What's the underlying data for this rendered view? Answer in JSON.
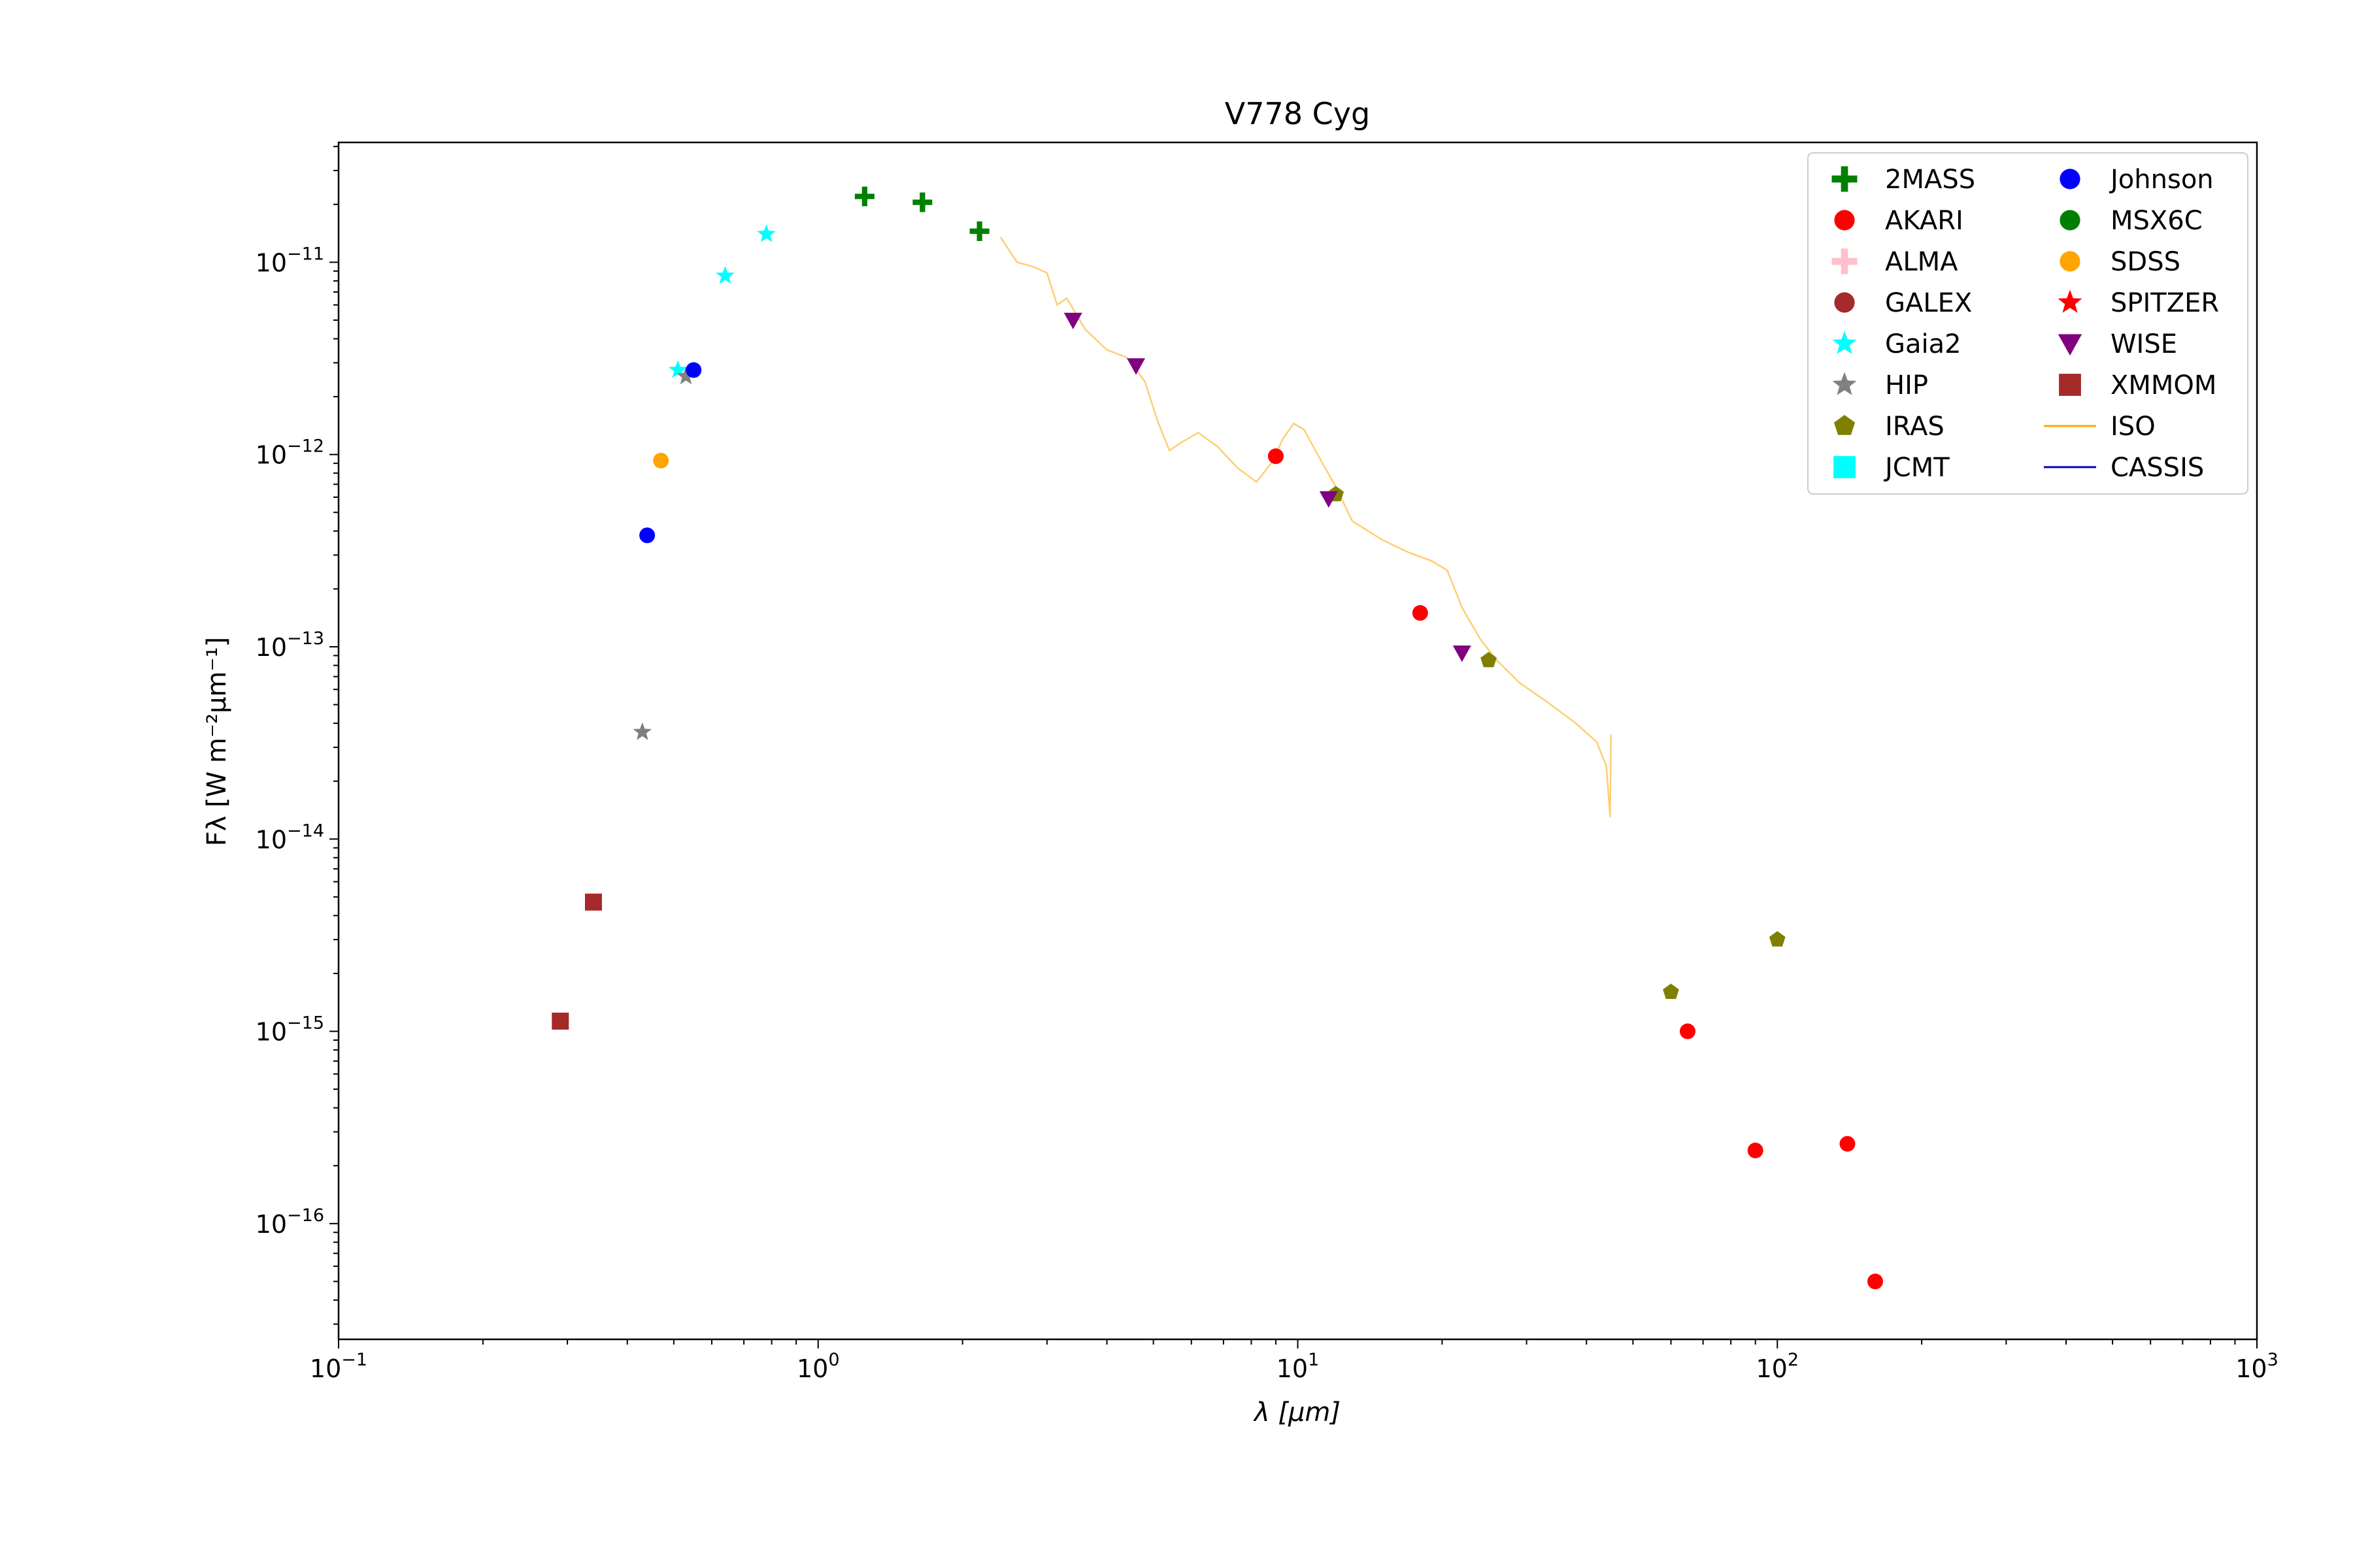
{
  "chart_data": {
    "type": "scatter",
    "title": "V778 Cyg",
    "xlabel": "λ [μm]",
    "ylabel": "Fλ [W m⁻²μm⁻¹]",
    "x_scale": "log",
    "y_scale": "log",
    "xlim": [
      0.1,
      1000
    ],
    "ylim": [
      2.5e-17,
      4.2e-11
    ],
    "grid": false,
    "legend_position": "top-right",
    "x_ticks": [
      {
        "value": 0.1,
        "base": "10",
        "exp": "−1"
      },
      {
        "value": 1,
        "base": "10",
        "exp": "0"
      },
      {
        "value": 10,
        "base": "10",
        "exp": "1"
      },
      {
        "value": 100,
        "base": "10",
        "exp": "2"
      },
      {
        "value": 1000,
        "base": "10",
        "exp": "3"
      }
    ],
    "y_ticks": [
      {
        "value": 1e-16,
        "base": "10",
        "exp": "−16"
      },
      {
        "value": 1e-15,
        "base": "10",
        "exp": "−15"
      },
      {
        "value": 1e-14,
        "base": "10",
        "exp": "−14"
      },
      {
        "value": 1e-13,
        "base": "10",
        "exp": "−13"
      },
      {
        "value": 1e-12,
        "base": "10",
        "exp": "−12"
      },
      {
        "value": 1e-11,
        "base": "10",
        "exp": "−11"
      }
    ],
    "series": [
      {
        "name": "2MASS",
        "marker": "plus",
        "color": "#008000",
        "points": [
          [
            1.25,
            2.2e-11
          ],
          [
            1.65,
            2.05e-11
          ],
          [
            2.17,
            1.45e-11
          ]
        ]
      },
      {
        "name": "AKARI",
        "marker": "circle",
        "color": "#ff0000",
        "points": [
          [
            9,
            9.8e-13
          ],
          [
            18,
            1.5e-13
          ],
          [
            65,
            1e-15
          ],
          [
            90,
            2.4e-16
          ],
          [
            140,
            2.6e-16
          ],
          [
            160,
            5e-17
          ]
        ]
      },
      {
        "name": "ALMA",
        "marker": "plus",
        "color": "#ffc0cb",
        "points": []
      },
      {
        "name": "GALEX",
        "marker": "circle",
        "color": "#a52a2a",
        "points": []
      },
      {
        "name": "Gaia2",
        "marker": "star",
        "color": "#00ffff",
        "points": [
          [
            0.51,
            2.75e-12
          ],
          [
            0.64,
            8.5e-12
          ],
          [
            0.78,
            1.4e-11
          ]
        ]
      },
      {
        "name": "HIP",
        "marker": "star",
        "color": "#808080",
        "points": [
          [
            0.43,
            3.6e-14
          ],
          [
            0.53,
            2.55e-12
          ]
        ]
      },
      {
        "name": "IRAS",
        "marker": "pentagon",
        "color": "#808000",
        "points": [
          [
            12,
            6.2e-13
          ],
          [
            25,
            8.5e-14
          ],
          [
            60,
            1.6e-15
          ],
          [
            100,
            3e-15
          ]
        ]
      },
      {
        "name": "JCMT",
        "marker": "square",
        "color": "#00ffff",
        "points": []
      },
      {
        "name": "Johnson",
        "marker": "circle",
        "color": "#0000ff",
        "points": [
          [
            0.44,
            3.8e-13
          ],
          [
            0.55,
            2.75e-12
          ]
        ]
      },
      {
        "name": "MSX6C",
        "marker": "circle",
        "color": "#008000",
        "points": []
      },
      {
        "name": "SDSS",
        "marker": "circle",
        "color": "#ffa500",
        "points": [
          [
            0.47,
            9.3e-13
          ]
        ]
      },
      {
        "name": "SPITZER",
        "marker": "star",
        "color": "#ff0000",
        "points": []
      },
      {
        "name": "WISE",
        "marker": "triangle-down",
        "color": "#800080",
        "points": [
          [
            3.4,
            5e-12
          ],
          [
            4.6,
            2.9e-12
          ],
          [
            11.6,
            5.9e-13
          ],
          [
            22,
            9.3e-14
          ]
        ]
      },
      {
        "name": "XMMOM",
        "marker": "square",
        "color": "#a52a2a",
        "points": [
          [
            0.29,
            1.13e-15
          ],
          [
            0.34,
            4.7e-15
          ]
        ]
      },
      {
        "name": "ISO",
        "marker": "line",
        "color": "#ffa500",
        "points": [
          [
            2.4,
            1.35e-11
          ],
          [
            2.6,
            1e-11
          ],
          [
            2.8,
            9.5e-12
          ],
          [
            3.0,
            8.8e-12
          ],
          [
            3.15,
            6e-12
          ],
          [
            3.3,
            6.5e-12
          ],
          [
            3.6,
            4.5e-12
          ],
          [
            4.0,
            3.5e-12
          ],
          [
            4.4,
            3.2e-12
          ],
          [
            4.8,
            2.4e-12
          ],
          [
            5.1,
            1.5e-12
          ],
          [
            5.4,
            1.05e-12
          ],
          [
            5.7,
            1.15e-12
          ],
          [
            6.2,
            1.3e-12
          ],
          [
            6.8,
            1.1e-12
          ],
          [
            7.5,
            8.5e-13
          ],
          [
            8.2,
            7.2e-13
          ],
          [
            8.8,
            9e-13
          ],
          [
            9.3,
            1.2e-12
          ],
          [
            9.8,
            1.45e-12
          ],
          [
            10.3,
            1.35e-12
          ],
          [
            11.0,
            1e-12
          ],
          [
            12.0,
            6.8e-13
          ],
          [
            13.0,
            4.5e-13
          ],
          [
            15.0,
            3.6e-13
          ],
          [
            17.0,
            3.1e-13
          ],
          [
            19.0,
            2.8e-13
          ],
          [
            20.5,
            2.5e-13
          ],
          [
            22.0,
            1.6e-13
          ],
          [
            24.0,
            1.1e-13
          ],
          [
            26.0,
            8.5e-14
          ],
          [
            29.0,
            6.5e-14
          ],
          [
            33.0,
            5.2e-14
          ],
          [
            38.0,
            4e-14
          ],
          [
            42.0,
            3.2e-14
          ],
          [
            44.0,
            2.4e-14
          ],
          [
            44.8,
            1.3e-14
          ],
          [
            45.0,
            3.5e-14
          ]
        ]
      },
      {
        "name": "CASSIS",
        "marker": "line",
        "color": "#0000cd",
        "points": []
      }
    ]
  }
}
